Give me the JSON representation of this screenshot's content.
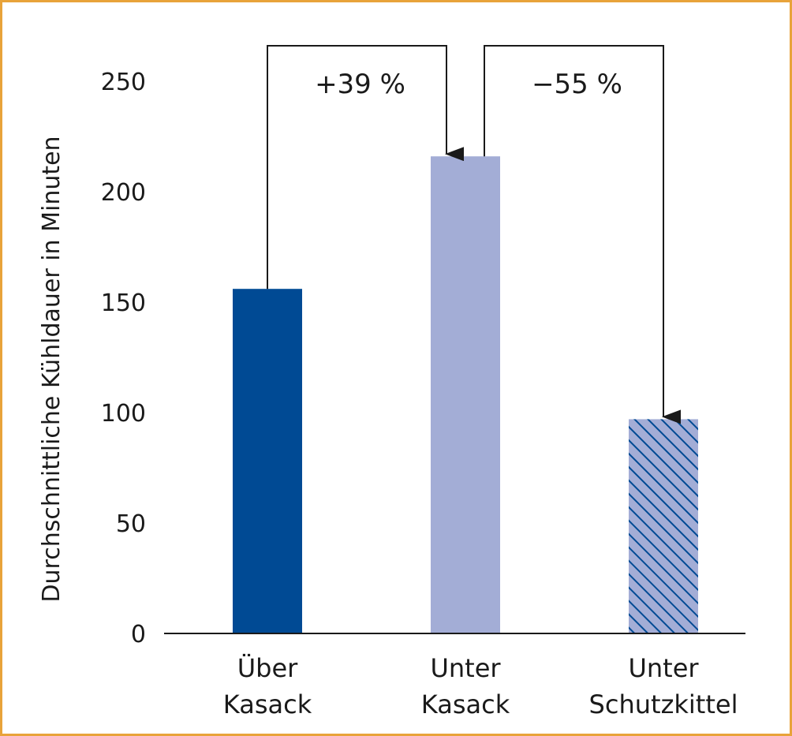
{
  "chart_data": {
    "type": "bar",
    "categories": [
      [
        "Über",
        "Kasack"
      ],
      [
        "Unter",
        "Kasack"
      ],
      [
        "Unter",
        "Schutzkittel"
      ]
    ],
    "values": [
      156,
      216,
      97
    ],
    "ylabel": "Durchschnittliche Kühldauer in Minuten",
    "yticks": [
      0,
      50,
      100,
      150,
      200,
      250
    ],
    "ylim": [
      0,
      270
    ],
    "grid": false,
    "bar_styles": [
      {
        "fill": "#004a94",
        "pattern": "solid"
      },
      {
        "fill": "#a3add6",
        "pattern": "solid"
      },
      {
        "fill": "#a3add6",
        "pattern": "diagonal-hatch",
        "hatch_color": "#004a94"
      }
    ],
    "annotations": [
      {
        "text": "+39 %",
        "from": 0,
        "to": 1
      },
      {
        "text": "−55 %",
        "from": 1,
        "to": 2
      }
    ]
  },
  "colors": {
    "frame": "#e8a33a",
    "axis": "#1a1a1a"
  }
}
